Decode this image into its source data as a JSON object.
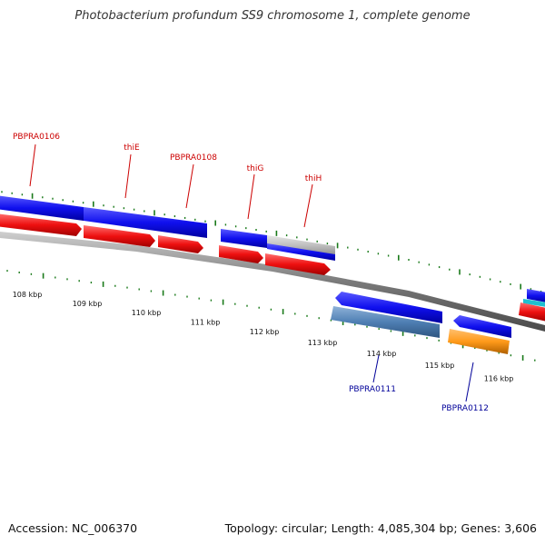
{
  "title": "Photobacterium profundum SS9 chromosome 1, complete genome",
  "footer": {
    "accession": "Accession: NC_006370",
    "summary": "Topology: circular; Length: 4,085,304 bp; Genes: 3,606"
  },
  "scale": {
    "labels": [
      "108 kbp",
      "109 kbp",
      "110 kbp",
      "111 kbp",
      "112 kbp",
      "113 kbp",
      "114 kbp",
      "115 kbp",
      "116 kbp"
    ]
  },
  "genes": [
    {
      "name": "PBPRA0106",
      "strand": "forward"
    },
    {
      "name": "thiE",
      "strand": "forward"
    },
    {
      "name": "PBPRA0108",
      "strand": "forward"
    },
    {
      "name": "thiG",
      "strand": "forward"
    },
    {
      "name": "thiH",
      "strand": "forward"
    },
    {
      "name": "PBPRA0111",
      "strand": "reverse"
    },
    {
      "name": "PBPRA0112",
      "strand": "reverse"
    }
  ],
  "colors": {
    "forward_label": "#cc0000",
    "reverse_label": "#000099",
    "tick": "#1a7a1a"
  }
}
